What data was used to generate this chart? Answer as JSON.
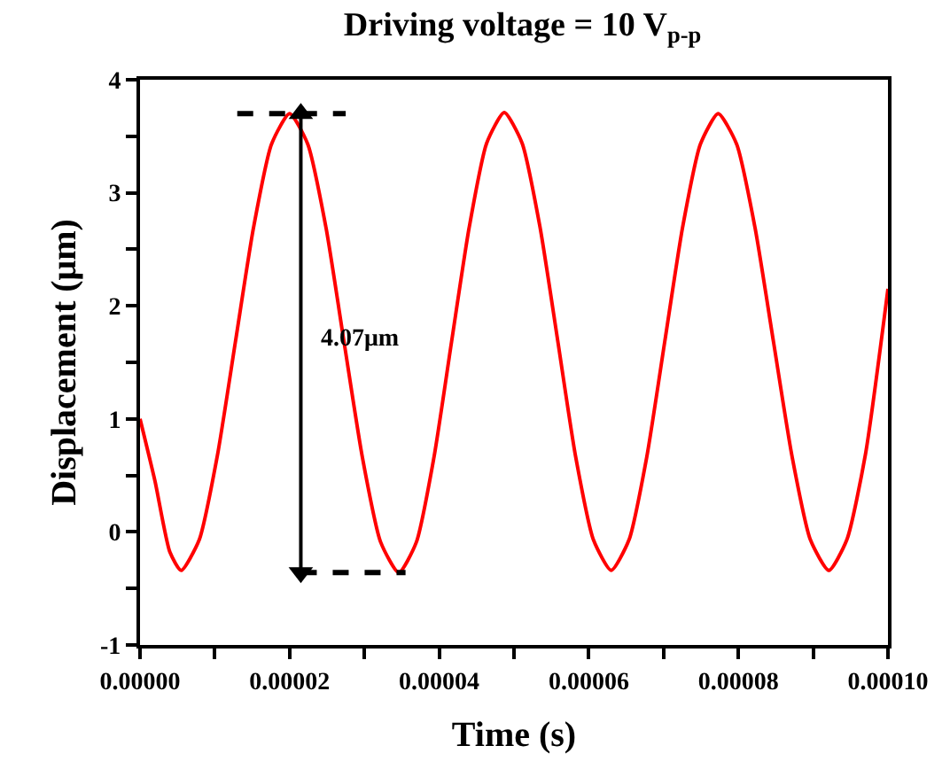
{
  "chart_data": {
    "type": "line",
    "title": "Driving voltage = 10 V$_{p-p}$",
    "xlabel": "Time (s)",
    "ylabel": "Displacement (μm)",
    "x": [
      0,
      2e-06,
      4e-06,
      5.5e-06,
      7.92e-06,
      1.033e-05,
      1.275e-05,
      1.517e-05,
      1.758e-05,
      2e-05,
      2.243e-05,
      2.487e-05,
      2.73e-05,
      2.973e-05,
      3.217e-05,
      3.46e-05,
      3.695e-05,
      3.93e-05,
      4.165e-05,
      4.4e-05,
      4.635e-05,
      4.87e-05,
      5.108e-05,
      5.347e-05,
      5.585e-05,
      5.823e-05,
      6.062e-05,
      6.3e-05,
      6.538e-05,
      6.777e-05,
      7.015e-05,
      7.253e-05,
      7.492e-05,
      7.73e-05,
      7.977e-05,
      8.223e-05,
      8.47e-05,
      8.717e-05,
      8.963e-05,
      9.21e-05,
      9.45e-05,
      9.7e-05,
      0.0001
    ],
    "series": [
      {
        "color": "#ff0000",
        "values": [
          1.0,
          0.45,
          -0.18,
          -0.34,
          -0.07,
          0.67,
          1.68,
          2.69,
          3.43,
          3.7,
          3.43,
          2.69,
          1.67,
          0.66,
          -0.09,
          -0.36,
          -0.09,
          0.66,
          1.68,
          2.69,
          3.44,
          3.71,
          3.44,
          2.7,
          1.69,
          0.67,
          -0.07,
          -0.34,
          -0.07,
          0.67,
          1.68,
          2.69,
          3.43,
          3.7,
          3.43,
          2.69,
          1.68,
          0.67,
          -0.07,
          -0.34,
          -0.07,
          0.69,
          2.15
        ]
      },
      {
        "color": "#000000",
        "line_style": "dashed",
        "x": [
          1.3e-05,
          2.75e-05
        ],
        "values": [
          3.7,
          3.7
        ]
      },
      {
        "color": "#000000",
        "line_style": "dashed",
        "x": [
          2.15e-05,
          3.55e-05
        ],
        "values": [
          -0.36,
          -0.36
        ]
      },
      {
        "color": "#000000",
        "marker": "triangle",
        "x": [
          2.15e-05,
          2.15e-05
        ],
        "values": [
          3.7,
          -0.36
        ]
      }
    ],
    "annotations": [
      "4.07μm"
    ],
    "xlim": [
      0,
      0.0001
    ],
    "xticks": [
      {
        "value": 0,
        "label": "0.00000"
      },
      {
        "value": 1e-05,
        "label": null
      },
      {
        "value": 2e-05,
        "label": "0.00002"
      },
      {
        "value": 3e-05,
        "label": null
      },
      {
        "value": 4e-05,
        "label": "0.00004"
      },
      {
        "value": 5e-05,
        "label": null
      },
      {
        "value": 6e-05,
        "label": "0.00006"
      },
      {
        "value": 7e-05,
        "label": null
      },
      {
        "value": 8e-05,
        "label": "0.00008"
      },
      {
        "value": 9e-05,
        "label": null
      },
      {
        "value": 0.0001,
        "label": "0.00010"
      }
    ],
    "ylim": [
      -1,
      4
    ],
    "yticks": [
      -1,
      {
        "value": -0.5,
        "label": null
      },
      0,
      {
        "value": 0.5,
        "label": null
      },
      1,
      {
        "value": 1.5,
        "label": null
      },
      2,
      {
        "value": 2.5,
        "label": null
      },
      3,
      {
        "value": 3.5,
        "label": null
      },
      4
    ],
    "line_style": "solid"
  }
}
